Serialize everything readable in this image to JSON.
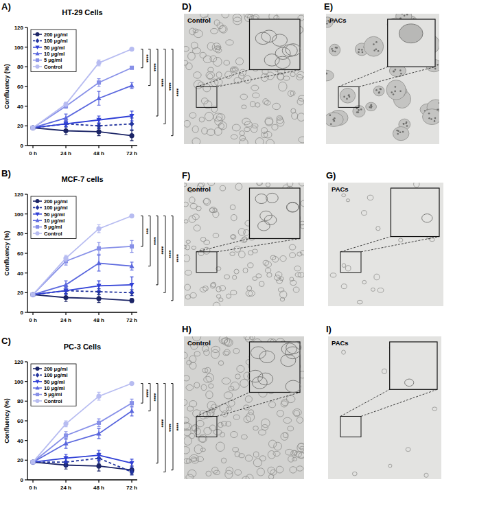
{
  "chart_data": [
    {
      "type": "line",
      "panel": "A)",
      "title": "HT-29 Cells",
      "y_label": "Confluency (%)",
      "categories": [
        "0 h",
        "24 h",
        "48 h",
        "72 h"
      ],
      "ylim": [
        0,
        120
      ],
      "yticks": [
        0,
        20,
        40,
        60,
        80,
        100,
        120
      ],
      "grid": false,
      "legend": "top-left",
      "series": [
        {
          "name": "200 μg/ml",
          "color": "#1b2466",
          "marker": "circle",
          "line_style": "solid",
          "values": [
            18,
            15,
            14,
            10
          ],
          "errors": [
            1,
            4,
            4,
            5
          ]
        },
        {
          "name": "100 μg/ml",
          "color": "#22349e",
          "marker": "diamond",
          "line_style": "dashed",
          "values": [
            18,
            22,
            20,
            22
          ],
          "errors": [
            1,
            3,
            3,
            6
          ]
        },
        {
          "name": "50 μg/ml",
          "color": "#2f3fd6",
          "marker": "triangle-down",
          "line_style": "solid",
          "values": [
            18,
            22,
            26,
            30
          ],
          "errors": [
            1,
            3,
            4,
            5
          ]
        },
        {
          "name": "10 μg/ml",
          "color": "#5a67de",
          "marker": "triangle-up",
          "line_style": "solid",
          "values": [
            18,
            28,
            48,
            61
          ],
          "errors": [
            1,
            4,
            7,
            3
          ]
        },
        {
          "name": "5 μg/ml",
          "color": "#8790e8",
          "marker": "square",
          "line_style": "solid",
          "values": [
            18,
            40,
            64,
            79
          ],
          "errors": [
            1,
            2,
            4,
            1
          ]
        },
        {
          "name": "Control",
          "color": "#b7bcf1",
          "marker": "circle",
          "line_style": "solid",
          "values": [
            18,
            42,
            84,
            98
          ],
          "errors": [
            1,
            2,
            3,
            1
          ]
        }
      ],
      "significance": [
        {
          "pair": [
            5,
            4
          ],
          "label": "****"
        },
        {
          "pair": [
            5,
            3
          ],
          "label": "****"
        },
        {
          "pair": [
            5,
            2
          ],
          "label": "****"
        },
        {
          "pair": [
            5,
            1
          ],
          "label": "****"
        },
        {
          "pair": [
            5,
            0
          ],
          "label": "****"
        }
      ]
    },
    {
      "type": "line",
      "panel": "B)",
      "title": "MCF-7 cells",
      "y_label": "Confluency (%)",
      "categories": [
        "0 h",
        "24 h",
        "48 h",
        "72 h"
      ],
      "ylim": [
        0,
        120
      ],
      "yticks": [
        0,
        20,
        40,
        60,
        80,
        100,
        120
      ],
      "grid": false,
      "legend": "top-left",
      "series": [
        {
          "name": "200 μg/ml",
          "color": "#1b2466",
          "marker": "circle",
          "line_style": "solid",
          "values": [
            18,
            15,
            14,
            12
          ],
          "errors": [
            1,
            4,
            4,
            2
          ]
        },
        {
          "name": "100 μg/ml",
          "color": "#22349e",
          "marker": "diamond",
          "line_style": "dashed",
          "values": [
            18,
            22,
            21,
            20
          ],
          "errors": [
            1,
            3,
            3,
            3
          ]
        },
        {
          "name": "50 μg/ml",
          "color": "#2f3fd6",
          "marker": "triangle-down",
          "line_style": "solid",
          "values": [
            18,
            22,
            27,
            28
          ],
          "errors": [
            1,
            4,
            5,
            8
          ]
        },
        {
          "name": "10 μg/ml",
          "color": "#5a67de",
          "marker": "triangle-up",
          "line_style": "solid",
          "values": [
            18,
            28,
            50,
            47
          ],
          "errors": [
            1,
            4,
            8,
            4
          ]
        },
        {
          "name": "5 μg/ml",
          "color": "#8790e8",
          "marker": "square",
          "line_style": "solid",
          "values": [
            18,
            52,
            65,
            67
          ],
          "errors": [
            1,
            4,
            6,
            6
          ]
        },
        {
          "name": "Control",
          "color": "#b7bcf1",
          "marker": "circle",
          "line_style": "solid",
          "values": [
            18,
            55,
            85,
            98
          ],
          "errors": [
            1,
            3,
            4,
            1
          ]
        }
      ],
      "significance": [
        {
          "pair": [
            5,
            4
          ],
          "label": "***"
        },
        {
          "pair": [
            5,
            3
          ],
          "label": "****"
        },
        {
          "pair": [
            5,
            2
          ],
          "label": "****"
        },
        {
          "pair": [
            5,
            1
          ],
          "label": "****"
        },
        {
          "pair": [
            5,
            0
          ],
          "label": "****"
        }
      ]
    },
    {
      "type": "line",
      "panel": "C)",
      "title": "PC-3 Cells",
      "y_label": "Confluency (%)",
      "categories": [
        "0 h",
        "24 h",
        "48 h",
        "72 h"
      ],
      "ylim": [
        0,
        120
      ],
      "yticks": [
        0,
        20,
        40,
        60,
        80,
        100,
        120
      ],
      "grid": false,
      "legend": "top-left",
      "series": [
        {
          "name": "200 μg/ml",
          "color": "#1b2466",
          "marker": "circle",
          "line_style": "solid",
          "values": [
            18,
            15,
            14,
            10
          ],
          "errors": [
            1,
            4,
            5,
            4
          ]
        },
        {
          "name": "100 μg/ml",
          "color": "#22349e",
          "marker": "diamond",
          "line_style": "dashed",
          "values": [
            18,
            18,
            22,
            8
          ],
          "errors": [
            1,
            4,
            5,
            3
          ]
        },
        {
          "name": "50 μg/ml",
          "color": "#2f3fd6",
          "marker": "triangle-down",
          "line_style": "solid",
          "values": [
            18,
            22,
            25,
            17
          ],
          "errors": [
            1,
            4,
            5,
            4
          ]
        },
        {
          "name": "10 μg/ml",
          "color": "#5a67de",
          "marker": "triangle-up",
          "line_style": "solid",
          "values": [
            18,
            37,
            47,
            70
          ],
          "errors": [
            1,
            5,
            5,
            5
          ]
        },
        {
          "name": "5 μg/ml",
          "color": "#8790e8",
          "marker": "square",
          "line_style": "solid",
          "values": [
            18,
            45,
            58,
            78
          ],
          "errors": [
            1,
            4,
            4,
            4
          ]
        },
        {
          "name": "Control",
          "color": "#b7bcf1",
          "marker": "circle",
          "line_style": "solid",
          "values": [
            18,
            57,
            85,
            98
          ],
          "errors": [
            1,
            3,
            4,
            1
          ]
        }
      ],
      "significance": [
        {
          "pair": [
            5,
            4
          ],
          "label": "****"
        },
        {
          "pair": [
            5,
            3
          ],
          "label": "****"
        },
        {
          "pair": [
            5,
            2
          ],
          "label": "****"
        },
        {
          "pair": [
            5,
            1
          ],
          "label": "****"
        },
        {
          "pair": [
            5,
            0
          ],
          "label": "****"
        }
      ]
    }
  ],
  "micrographs": [
    {
      "panel": "D)",
      "label": "Control"
    },
    {
      "panel": "E)",
      "label": "PACs"
    },
    {
      "panel": "F)",
      "label": "Control"
    },
    {
      "panel": "G)",
      "label": "PACs"
    },
    {
      "panel": "H)",
      "label": "Control"
    },
    {
      "panel": "I)",
      "label": "PACs"
    }
  ]
}
